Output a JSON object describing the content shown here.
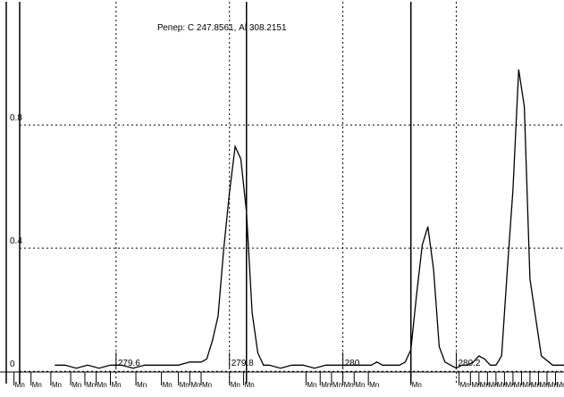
{
  "chart_data": {
    "type": "line",
    "title": "Репер: С  247.8561, Al  308.2151",
    "x_ticks": [
      "279.6",
      "279.8",
      "280",
      "280.2"
    ],
    "y_ticks": [
      "0.8",
      "0.4",
      "0"
    ],
    "xlim": [
      279.43,
      280.39
    ],
    "ylim": [
      -0.04,
      1.2
    ],
    "grid": true,
    "markers": [
      279.83,
      280.12
    ],
    "annotation": "Mn",
    "line_labels": [
      279.42,
      279.45,
      279.485,
      279.52,
      279.545,
      279.565,
      279.59,
      279.635,
      279.68,
      279.71,
      279.73,
      279.75,
      279.8,
      279.825,
      279.935,
      279.96,
      279.98,
      280.0,
      280.02,
      280.045,
      280.12,
      280.205,
      280.225,
      280.24,
      280.255,
      280.27,
      280.285,
      280.3,
      280.315,
      280.33,
      280.345,
      280.36,
      280.375
    ],
    "series": [
      {
        "x": [
          279.492,
          279.51,
          279.53,
          279.55,
          279.57,
          279.59,
          279.61,
          279.63,
          279.65,
          279.67,
          279.69,
          279.71,
          279.73,
          279.75,
          279.76,
          279.77,
          279.78,
          279.79,
          279.8,
          279.81,
          279.82,
          279.83,
          279.84,
          279.85,
          279.86,
          279.87,
          279.89,
          279.91,
          279.93,
          279.95,
          279.97,
          279.99,
          280.01,
          280.03,
          280.05,
          280.06,
          280.07,
          280.08,
          280.09,
          280.1,
          280.11,
          280.12,
          280.13,
          280.14,
          280.15,
          280.16,
          280.17,
          280.18,
          280.19,
          280.2,
          280.21,
          280.22,
          280.23,
          280.24,
          280.25,
          280.26,
          280.27,
          280.28,
          280.29,
          280.3,
          280.31,
          280.32,
          280.33,
          280.35,
          280.37,
          280.39
        ],
        "y": [
          0.02,
          0.02,
          0.01,
          0.02,
          0.01,
          0.02,
          0.02,
          0.01,
          0.02,
          0.02,
          0.02,
          0.02,
          0.03,
          0.03,
          0.04,
          0.1,
          0.18,
          0.4,
          0.58,
          0.73,
          0.69,
          0.52,
          0.19,
          0.06,
          0.02,
          0.02,
          0.01,
          0.02,
          0.02,
          0.01,
          0.02,
          0.02,
          0.02,
          0.02,
          0.02,
          0.03,
          0.02,
          0.02,
          0.02,
          0.02,
          0.03,
          0.07,
          0.25,
          0.41,
          0.47,
          0.33,
          0.08,
          0.03,
          0.02,
          0.01,
          0.02,
          0.02,
          0.03,
          0.05,
          0.04,
          0.02,
          0.02,
          0.05,
          0.33,
          0.59,
          0.98,
          0.86,
          0.3,
          0.05,
          0.02,
          0.02
        ]
      }
    ]
  }
}
